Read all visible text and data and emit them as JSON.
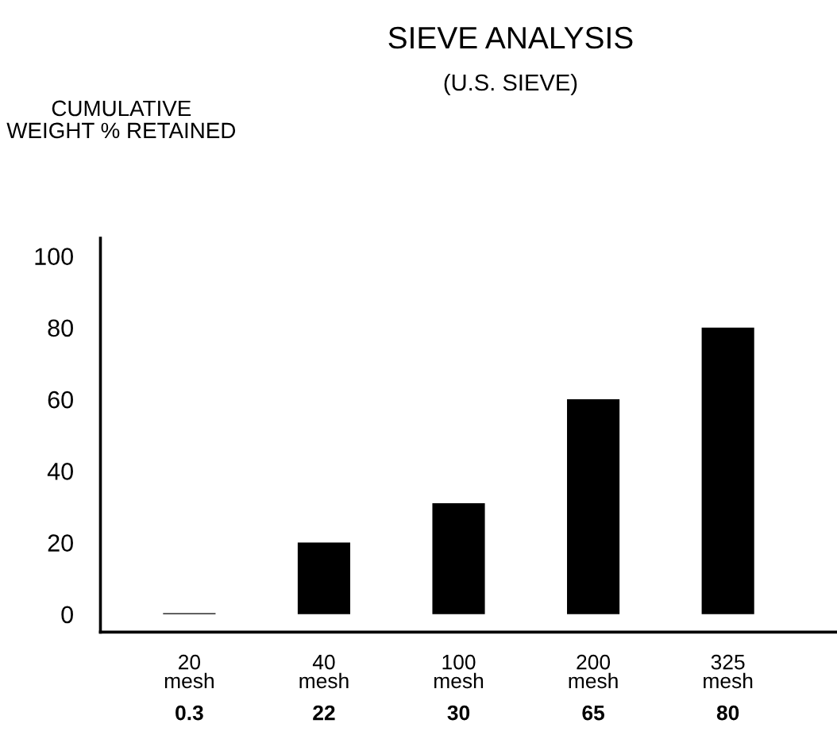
{
  "chart_data": {
    "type": "bar",
    "title": "SIEVE ANALYSIS",
    "subtitle": "(U.S. SIEVE)",
    "ylabel": "CUMULATIVE\nWEIGHT % RETAINED",
    "categories": [
      "20\nmesh\n0.3",
      "40\nmesh\n22",
      "100\nmesh\n30",
      "200\nmesh\n65",
      "325\nmesh\n80"
    ],
    "values": [
      0.3,
      20,
      31,
      60,
      80
    ],
    "color": "#000000",
    "ylim": [
      -5,
      105
    ],
    "yticks": [
      0,
      20,
      40,
      60,
      80,
      100
    ],
    "grid": false,
    "legend": false
  }
}
